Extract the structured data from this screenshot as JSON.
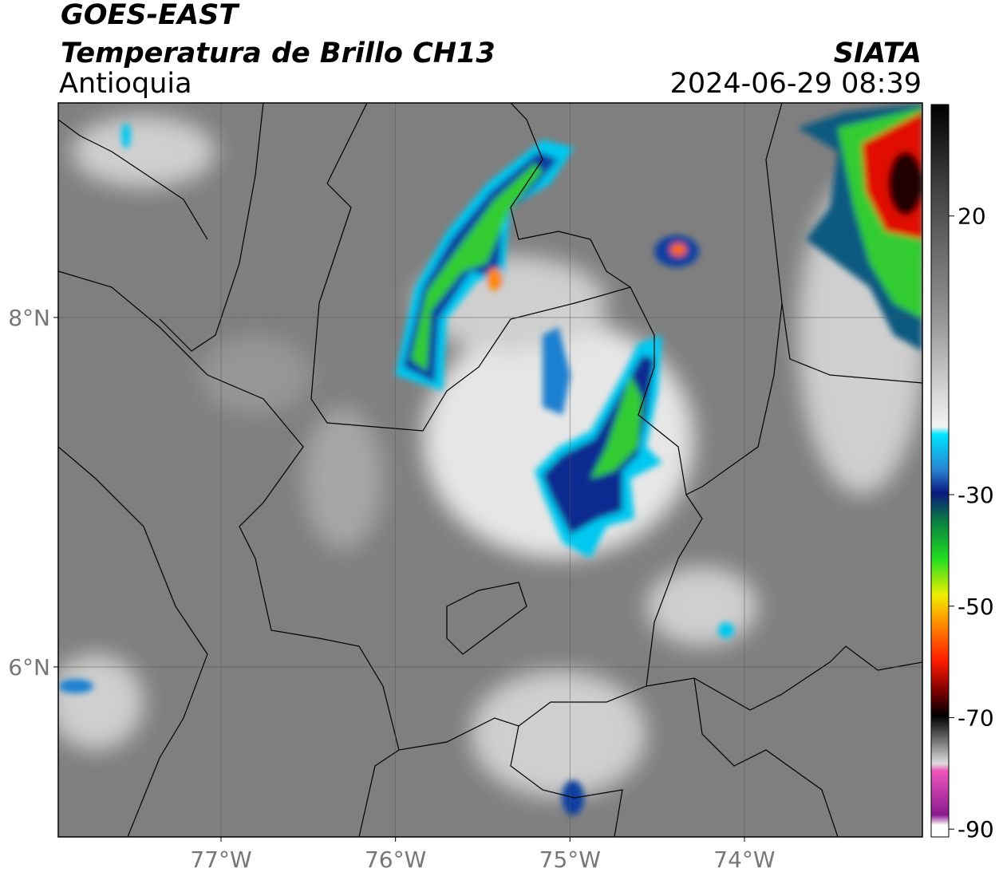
{
  "header": {
    "title": "GOES-EAST",
    "subtitle": "Temperatura de Brillo CH13",
    "region": "Antioquia",
    "source": "SIATA",
    "datetime": "2024-06-29 08:39"
  },
  "map": {
    "lat_range": [
      5.027,
      9.228
    ],
    "lon_range": [
      -77.933,
      -72.98
    ],
    "lat_ticks": [
      {
        "value": 8,
        "label": "8°N"
      },
      {
        "value": 6,
        "label": "6°N"
      }
    ],
    "lon_ticks": [
      {
        "value": -77,
        "label": "77°W"
      },
      {
        "value": -76,
        "label": "76°W"
      },
      {
        "value": -75,
        "label": "75°W"
      },
      {
        "value": -74,
        "label": "74°W"
      }
    ],
    "grid": true
  },
  "colorbar": {
    "range": [
      -91.4,
      40
    ],
    "ticks": [
      20,
      -30,
      -50,
      -70,
      -90
    ]
  }
}
